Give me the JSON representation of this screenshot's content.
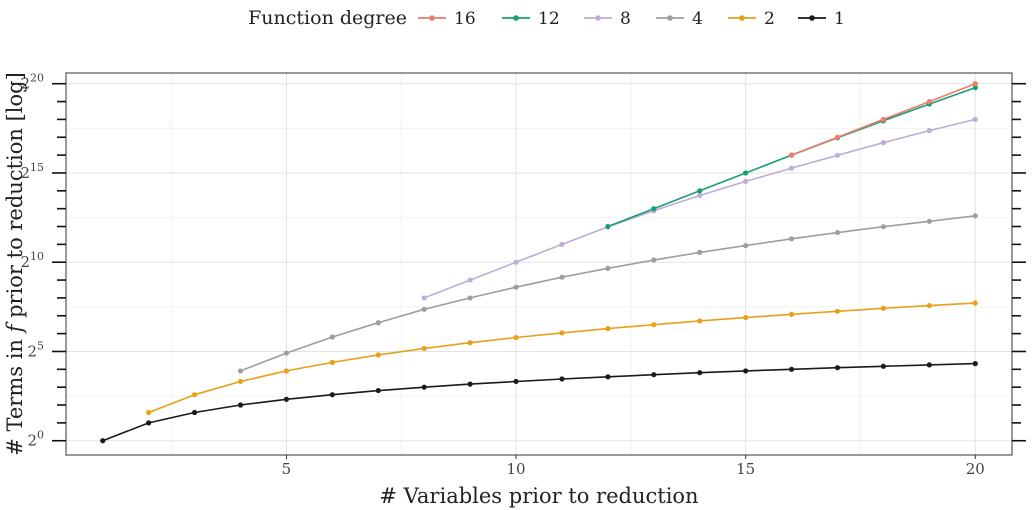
{
  "chart_data": {
    "type": "line",
    "title": "",
    "xlabel": "# Variables prior to reduction",
    "ylabel": "# Terms in f prior to reduction [log]",
    "ylabel_parts": {
      "prefix": "# Terms in ",
      "var": "f",
      "suffix": " prior to reduction [log]"
    },
    "x_scale": "linear",
    "y_scale": "log2",
    "xlim": [
      0.2,
      20.8
    ],
    "ylim_log2": [
      -0.8,
      20.6
    ],
    "x_ticks": [
      5,
      10,
      15,
      20
    ],
    "x_tick_labels": [
      "5",
      "10",
      "15",
      "20"
    ],
    "y_ticks_log2": [
      0,
      5,
      10,
      15,
      20
    ],
    "y_tick_labels": [
      {
        "base": "2",
        "exp": "0"
      },
      {
        "base": "2",
        "exp": "5"
      },
      {
        "base": "2",
        "exp": "10"
      },
      {
        "base": "2",
        "exp": "15"
      },
      {
        "base": "2",
        "exp": "20"
      }
    ],
    "grid": true,
    "legend_position": "top",
    "legend_title": "Function degree",
    "series": [
      {
        "name": "16",
        "color": "#f07a68",
        "x": [
          16,
          17,
          18,
          19,
          20
        ],
        "y_log2": [
          16.0,
          17.0,
          18.0,
          19.0,
          20.0
        ]
      },
      {
        "name": "12",
        "color": "#1b9e77",
        "x": [
          12,
          13,
          14,
          15,
          16,
          17,
          18,
          19,
          20
        ],
        "y_log2": [
          12.0,
          13.0,
          14.0,
          15.0,
          16.0,
          16.97,
          17.92,
          18.86,
          19.78
        ]
      },
      {
        "name": "8",
        "color": "#bcaed6",
        "x": [
          8,
          9,
          10,
          11,
          12,
          13,
          14,
          15,
          16,
          17,
          18,
          19,
          20
        ],
        "y_log2": [
          8.0,
          9.0,
          10.0,
          11.0,
          11.98,
          12.88,
          13.74,
          14.53,
          15.27,
          15.99,
          16.7,
          17.37,
          18.0
        ]
      },
      {
        "name": "4",
        "color": "#9e9e9e",
        "x": [
          4,
          5,
          6,
          7,
          8,
          9,
          10,
          11,
          12,
          13,
          14,
          15,
          16,
          17,
          18,
          19,
          20
        ],
        "y_log2": [
          3.91,
          4.91,
          5.81,
          6.61,
          7.36,
          8.0,
          8.6,
          9.16,
          9.66,
          10.12,
          10.55,
          10.93,
          11.31,
          11.66,
          11.99,
          12.29,
          12.6
        ]
      },
      {
        "name": "2",
        "color": "#e6a117",
        "x": [
          2,
          3,
          4,
          5,
          6,
          7,
          8,
          9,
          10,
          11,
          12,
          13,
          14,
          15,
          16,
          17,
          18,
          19,
          20
        ],
        "y_log2": [
          1.58,
          2.58,
          3.32,
          3.91,
          4.39,
          4.81,
          5.17,
          5.49,
          5.78,
          6.04,
          6.28,
          6.5,
          6.71,
          6.9,
          7.08,
          7.25,
          7.42,
          7.57,
          7.71
        ]
      },
      {
        "name": "1",
        "color": "#1a1a1a",
        "x": [
          1,
          2,
          3,
          4,
          5,
          6,
          7,
          8,
          9,
          10,
          11,
          12,
          13,
          14,
          15,
          16,
          17,
          18,
          19,
          20
        ],
        "y_log2": [
          0.0,
          1.0,
          1.58,
          2.0,
          2.32,
          2.58,
          2.81,
          3.0,
          3.17,
          3.32,
          3.46,
          3.58,
          3.7,
          3.81,
          3.91,
          4.0,
          4.09,
          4.17,
          4.25,
          4.32
        ]
      }
    ]
  }
}
